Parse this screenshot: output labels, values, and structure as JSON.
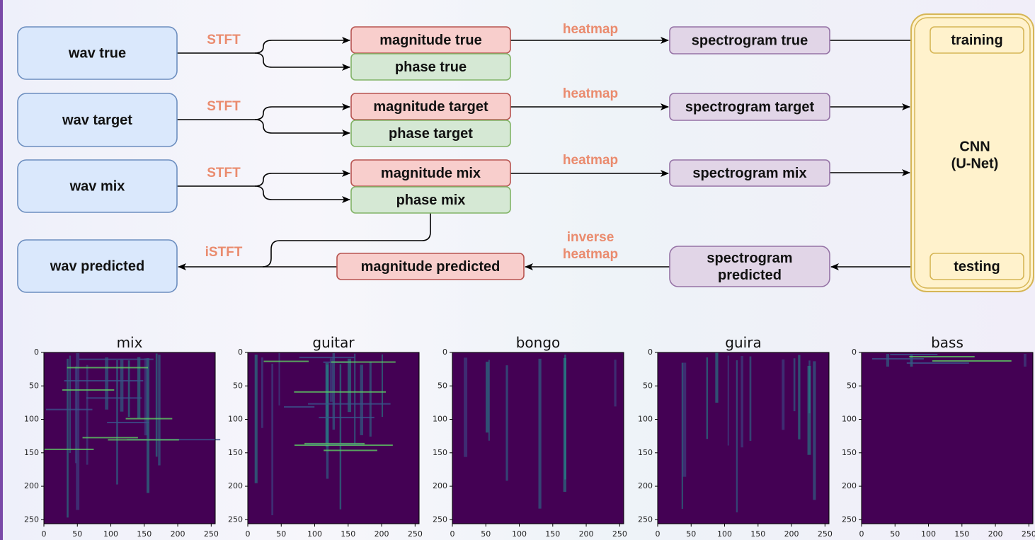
{
  "diagram": {
    "nodes": [
      {
        "label": "wav true"
      },
      {
        "label": "wav target"
      },
      {
        "label": "wav mix"
      },
      {
        "label": "wav predicted"
      },
      {
        "label": "magnitude true"
      },
      {
        "label": "phase true"
      },
      {
        "label": "magnitude target"
      },
      {
        "label": "phase target"
      },
      {
        "label": "magnitude mix"
      },
      {
        "label": "phase mix"
      },
      {
        "label": "magnitude predicted"
      },
      {
        "label": "spectrogram true"
      },
      {
        "label": "spectrogram target"
      },
      {
        "label": "spectrogram mix"
      },
      {
        "label": [
          "spectrogram",
          "predicted"
        ]
      },
      {
        "label": "training"
      },
      {
        "label": "testing"
      }
    ],
    "container": {
      "label": [
        "CNN",
        "(U-Net)"
      ]
    },
    "edge_labels": [
      "STFT",
      "STFT",
      "STFT",
      "iSTFT",
      "heatmap",
      "heatmap",
      "heatmap",
      [
        "inverse",
        "heatmap"
      ]
    ]
  },
  "spectrograms": [
    {
      "title": "mix",
      "xlim": [
        0,
        256
      ],
      "ylim": [
        256,
        0
      ],
      "xticks": [
        0,
        50,
        100,
        150,
        200,
        250
      ],
      "yticks": [
        0,
        50,
        100,
        150,
        200,
        250
      ]
    },
    {
      "title": "guitar",
      "xlim": [
        0,
        256
      ],
      "ylim": [
        256,
        0
      ],
      "xticks": [
        0,
        50,
        100,
        150,
        200,
        250
      ],
      "yticks": [
        0,
        50,
        100,
        150,
        200,
        250
      ]
    },
    {
      "title": "bongo",
      "xlim": [
        0,
        256
      ],
      "ylim": [
        256,
        0
      ],
      "xticks": [
        0,
        50,
        100,
        150,
        200,
        250
      ],
      "yticks": [
        0,
        50,
        100,
        150,
        200,
        250
      ]
    },
    {
      "title": "guira",
      "xlim": [
        0,
        256
      ],
      "ylim": [
        256,
        0
      ],
      "xticks": [
        0,
        50,
        100,
        150,
        200,
        250
      ],
      "yticks": [
        0,
        50,
        100,
        150,
        200,
        250
      ]
    },
    {
      "title": "bass",
      "xlim": [
        0,
        256
      ],
      "ylim": [
        256,
        0
      ],
      "xticks": [
        0,
        50,
        100,
        150,
        200,
        250
      ],
      "yticks": [
        0,
        50,
        100,
        150,
        200,
        250
      ]
    }
  ]
}
